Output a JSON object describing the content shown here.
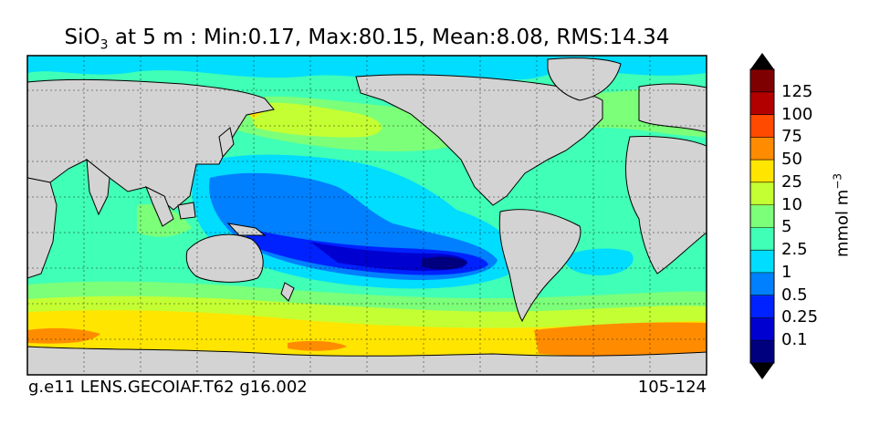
{
  "title": {
    "var_main": "SiO",
    "var_sub": "3",
    "rest": " at 5 m : Min:0.17, Max:80.15, Mean:8.08, RMS:14.34"
  },
  "footer": {
    "left": "g.e11 LENS.GECOIAF.T62 g16.002",
    "right": "105-124"
  },
  "colorbar": {
    "unit_main": "mmol m",
    "unit_sup": "−3",
    "levels": [
      "0.1",
      "0.25",
      "0.5",
      "1",
      "2.5",
      "5",
      "10",
      "25",
      "50",
      "75",
      "100",
      "125"
    ],
    "colors": [
      "#00007f",
      "#0000d0",
      "#0022ff",
      "#0080ff",
      "#00ddff",
      "#40ffb6",
      "#7cff79",
      "#c4ff33",
      "#ffe500",
      "#ff8c00",
      "#ff4a00",
      "#b20000",
      "#7f0000"
    ],
    "land_color": "#d3d3d3"
  },
  "chart_data": {
    "type": "heatmap",
    "title": "SiO3 at 5 m : Min:0.17, Max:80.15, Mean:8.08, RMS:14.34",
    "variable": "SiO3",
    "depth": "5 m",
    "stats": {
      "min": 0.17,
      "max": 80.15,
      "mean": 8.08,
      "rms": 14.34
    },
    "units": "mmol m-3",
    "contour_levels": [
      0.1,
      0.25,
      0.5,
      1,
      2.5,
      5,
      10,
      25,
      50,
      75,
      100,
      125
    ],
    "colorbar_extend": "both",
    "grid": true,
    "map_projection": "global lat-lon, Pacific-centered"
  }
}
